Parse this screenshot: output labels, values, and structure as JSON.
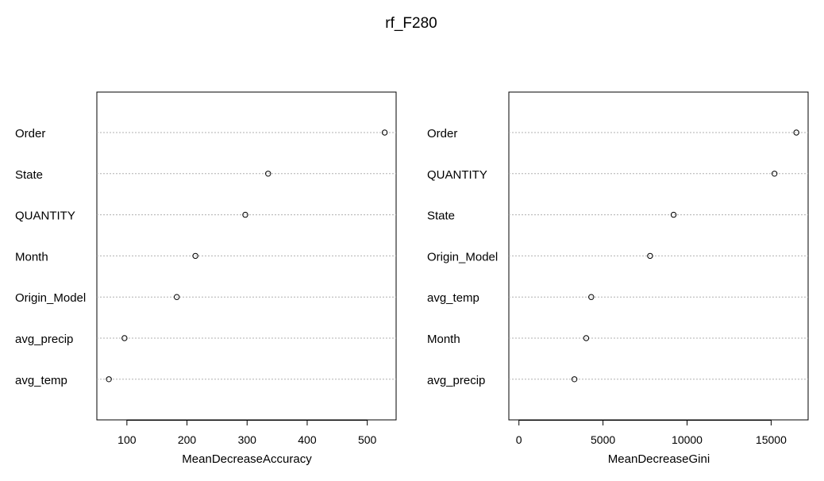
{
  "title": "rf_F280",
  "chart_data": [
    {
      "type": "scatter",
      "subtype": "dotchart",
      "categories": [
        "Order",
        "State",
        "QUANTITY",
        "Month",
        "Origin_Model",
        "avg_precip",
        "avg_temp"
      ],
      "values": [
        529,
        335,
        297,
        214,
        183,
        96,
        70
      ],
      "xlabel": "MeanDecreaseAccuracy",
      "xticks": [
        100,
        200,
        300,
        400,
        500
      ],
      "xlim": [
        50,
        548
      ],
      "grid": true,
      "gridstyle": "dotted"
    },
    {
      "type": "scatter",
      "subtype": "dotchart",
      "categories": [
        "Order",
        "QUANTITY",
        "State",
        "Origin_Model",
        "avg_temp",
        "Month",
        "avg_precip"
      ],
      "values": [
        16500,
        15200,
        9200,
        7800,
        4300,
        4000,
        3300
      ],
      "xlabel": "MeanDecreaseGini",
      "xticks": [
        0,
        5000,
        10000,
        15000
      ],
      "xlim": [
        -600,
        17200
      ],
      "grid": true,
      "gridstyle": "dotted"
    }
  ]
}
